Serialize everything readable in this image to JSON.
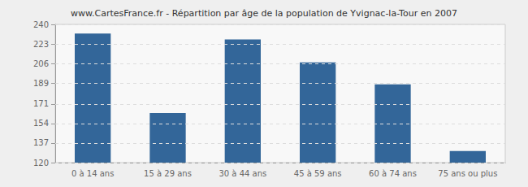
{
  "chart_data": {
    "type": "bar",
    "title": "www.CartesFrance.fr - Répartition par âge de la population de Yvignac-la-Tour en 2007",
    "categories": [
      "0 à 14 ans",
      "15 à 29 ans",
      "30 à 44 ans",
      "45 à 59 ans",
      "60 à 74 ans",
      "75 ans ou plus"
    ],
    "values": [
      232,
      163,
      227,
      207,
      188,
      130
    ],
    "color": "#336699",
    "ylim": [
      120,
      240
    ],
    "yticks": [
      120,
      137,
      154,
      171,
      189,
      206,
      223,
      240
    ],
    "grid": true
  }
}
